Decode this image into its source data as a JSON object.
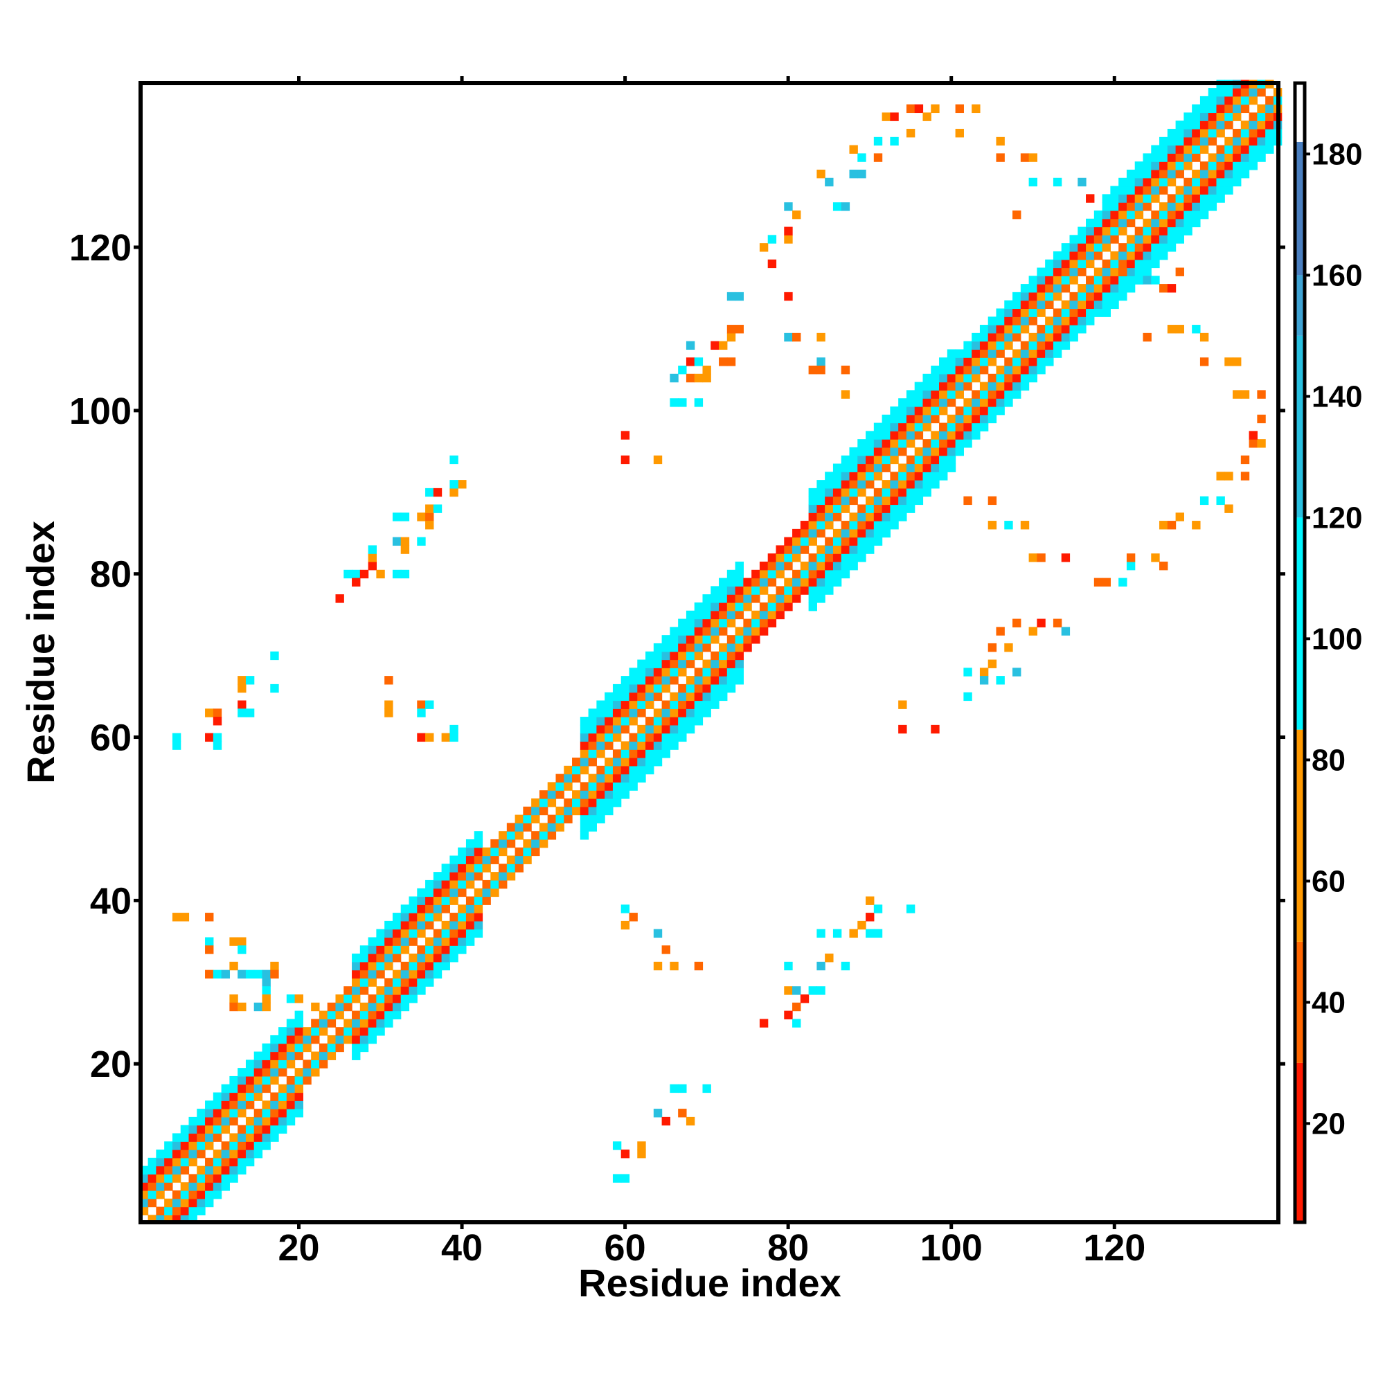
{
  "chart_data": {
    "type": "heatmap",
    "title": "",
    "xlabel": "Residue index",
    "ylabel": "Residue index",
    "xlim": [
      0.6,
      140.1
    ],
    "ylim": [
      0.6,
      140.1
    ],
    "xticks": [
      20,
      40,
      60,
      80,
      100,
      120
    ],
    "yticks": [
      20,
      40,
      60,
      80,
      100,
      120
    ],
    "grid": false,
    "colorbar": {
      "range": [
        3.7,
        191.7
      ],
      "ticks": [
        20,
        40,
        60,
        80,
        100,
        120,
        140,
        160,
        180
      ],
      "bins": [
        {
          "max": 30,
          "color": "#ff1a00"
        },
        {
          "max": 50,
          "color": "#ff6600"
        },
        {
          "max": 85,
          "color": "#ff9900"
        },
        {
          "max": 120,
          "color": "#00f5ff"
        },
        {
          "max": 150,
          "color": "#29c0e0"
        },
        {
          "max": 160,
          "color": "#3fa3d4"
        },
        {
          "max": 182,
          "color": "#4a7fc0"
        },
        {
          "max": 200,
          "color": "#ffffff"
        }
      ],
      "legend_placement": "right"
    },
    "diagonal_band": {
      "n_residues": 140,
      "half_width_segments": [
        {
          "from": 1,
          "to": 20,
          "hw": 6
        },
        {
          "from": 21,
          "to": 26,
          "hw": 3
        },
        {
          "from": 27,
          "to": 42,
          "hw": 6
        },
        {
          "from": 43,
          "to": 54,
          "hw": 3
        },
        {
          "from": 55,
          "to": 74,
          "hw": 7
        },
        {
          "from": 75,
          "to": 82,
          "hw": 4
        },
        {
          "from": 83,
          "to": 100,
          "hw": 7
        },
        {
          "from": 101,
          "to": 118,
          "hw": 6
        },
        {
          "from": 119,
          "to": 140,
          "hw": 7
        }
      ],
      "offset_values_even": [
        185,
        45,
        130,
        60,
        25,
        100,
        95,
        100
      ],
      "offset_values_odd": [
        185,
        60,
        100,
        45,
        25,
        130,
        95,
        100
      ]
    },
    "contacts": [
      [
        60,
        39,
        95
      ],
      [
        61,
        38,
        45
      ],
      [
        60,
        37,
        60
      ],
      [
        64,
        36,
        130
      ],
      [
        65,
        34,
        45
      ],
      [
        64,
        32,
        60
      ],
      [
        66,
        32,
        60
      ],
      [
        69,
        32,
        45
      ],
      [
        59,
        10,
        95
      ],
      [
        60,
        9,
        25
      ],
      [
        62,
        10,
        60
      ],
      [
        62,
        9,
        60
      ],
      [
        59,
        6,
        95
      ],
      [
        60,
        6,
        95
      ],
      [
        66,
        17,
        95
      ],
      [
        67,
        17,
        95
      ],
      [
        70,
        17,
        95
      ],
      [
        64,
        14,
        130
      ],
      [
        65,
        13,
        25
      ],
      [
        67,
        14,
        45
      ],
      [
        68,
        13,
        60
      ],
      [
        77,
        25,
        25
      ],
      [
        80,
        26,
        25
      ],
      [
        81,
        25,
        95
      ],
      [
        81,
        27,
        45
      ],
      [
        82,
        28,
        25
      ],
      [
        80,
        29,
        60
      ],
      [
        81,
        29,
        130
      ],
      [
        83,
        29,
        95
      ],
      [
        84,
        29,
        95
      ],
      [
        80,
        32,
        95
      ],
      [
        84,
        32,
        130
      ],
      [
        85,
        33,
        60
      ],
      [
        87,
        32,
        95
      ],
      [
        84,
        36,
        95
      ],
      [
        86,
        36,
        95
      ],
      [
        88,
        36,
        60
      ],
      [
        89,
        37,
        60
      ],
      [
        90,
        36,
        95
      ],
      [
        91,
        36,
        95
      ],
      [
        90,
        38,
        25
      ],
      [
        90,
        40,
        60
      ],
      [
        91,
        39,
        95
      ],
      [
        95,
        39,
        95
      ],
      [
        94,
        64,
        60
      ],
      [
        94,
        61,
        25
      ],
      [
        98,
        61,
        25
      ],
      [
        102,
        65,
        95
      ],
      [
        102,
        68,
        95
      ],
      [
        104,
        68,
        60
      ],
      [
        105,
        69,
        60
      ],
      [
        105,
        71,
        45
      ],
      [
        106,
        73,
        45
      ],
      [
        107,
        71,
        60
      ],
      [
        108,
        74,
        45
      ],
      [
        106,
        67,
        95
      ],
      [
        108,
        68,
        130
      ],
      [
        110,
        73,
        60
      ],
      [
        111,
        74,
        25
      ],
      [
        113,
        74,
        45
      ],
      [
        114,
        73,
        130
      ],
      [
        104,
        67,
        130
      ],
      [
        102,
        89,
        45
      ],
      [
        105,
        89,
        45
      ],
      [
        105,
        86,
        60
      ],
      [
        107,
        86,
        95
      ],
      [
        109,
        86,
        60
      ],
      [
        110,
        82,
        60
      ],
      [
        111,
        82,
        45
      ],
      [
        114,
        82,
        25
      ],
      [
        118,
        79,
        45
      ],
      [
        119,
        79,
        45
      ],
      [
        122,
        81,
        95
      ],
      [
        122,
        82,
        45
      ],
      [
        121,
        79,
        95
      ],
      [
        125,
        82,
        60
      ],
      [
        126,
        81,
        45
      ],
      [
        126,
        86,
        60
      ],
      [
        127,
        86,
        45
      ],
      [
        128,
        87,
        60
      ],
      [
        130,
        86,
        60
      ],
      [
        131,
        89,
        95
      ],
      [
        133,
        89,
        95
      ],
      [
        134,
        88,
        60
      ],
      [
        133,
        92,
        60
      ],
      [
        134,
        92,
        60
      ],
      [
        136,
        92,
        45
      ],
      [
        136,
        94,
        45
      ],
      [
        137,
        96,
        45
      ],
      [
        138,
        96,
        60
      ],
      [
        137,
        97,
        25
      ],
      [
        124,
        109,
        45
      ],
      [
        127,
        110,
        60
      ],
      [
        128,
        110,
        60
      ],
      [
        130,
        110,
        95
      ],
      [
        131,
        109,
        60
      ],
      [
        131,
        106,
        45
      ],
      [
        134,
        106,
        60
      ],
      [
        135,
        106,
        60
      ],
      [
        135,
        102,
        60
      ],
      [
        136,
        102,
        60
      ],
      [
        138,
        102,
        45
      ],
      [
        138,
        99,
        45
      ],
      [
        121,
        117,
        45
      ],
      [
        123,
        116,
        95
      ],
      [
        124,
        116,
        130
      ],
      [
        125,
        116,
        95
      ],
      [
        126,
        115,
        45
      ],
      [
        127,
        115,
        25
      ],
      [
        128,
        117,
        45
      ],
      [
        5,
        38,
        60
      ],
      [
        6,
        38,
        60
      ],
      [
        9,
        38,
        45
      ],
      [
        9,
        35,
        95
      ],
      [
        9,
        34,
        45
      ],
      [
        12,
        35,
        60
      ],
      [
        13,
        35,
        60
      ],
      [
        13,
        34,
        95
      ],
      [
        9,
        31,
        45
      ],
      [
        10,
        31,
        95
      ],
      [
        11,
        31,
        130
      ],
      [
        12,
        32,
        60
      ],
      [
        13,
        31,
        130
      ],
      [
        14,
        31,
        95
      ],
      [
        15,
        31,
        95
      ],
      [
        16,
        31,
        130
      ],
      [
        17,
        32,
        60
      ],
      [
        17,
        31,
        45
      ],
      [
        16,
        30,
        130
      ],
      [
        16,
        29,
        95
      ],
      [
        12,
        28,
        60
      ],
      [
        12,
        27,
        45
      ],
      [
        13,
        27,
        60
      ],
      [
        15,
        27,
        130
      ],
      [
        16,
        28,
        60
      ],
      [
        16,
        27,
        60
      ],
      [
        19,
        28,
        95
      ],
      [
        20,
        28,
        60
      ],
      [
        22,
        27,
        60
      ],
      [
        5,
        60,
        95
      ],
      [
        5,
        59,
        95
      ],
      [
        9,
        60,
        25
      ],
      [
        10,
        60,
        95
      ],
      [
        10,
        59,
        95
      ],
      [
        9,
        63,
        60
      ],
      [
        10,
        63,
        45
      ],
      [
        10,
        62,
        25
      ],
      [
        13,
        66,
        60
      ],
      [
        13,
        67,
        60
      ],
      [
        14,
        67,
        95
      ],
      [
        13,
        64,
        25
      ],
      [
        13,
        63,
        95
      ],
      [
        14,
        63,
        95
      ],
      [
        17,
        66,
        95
      ],
      [
        17,
        70,
        95
      ],
      [
        31,
        67,
        45
      ],
      [
        31,
        64,
        60
      ],
      [
        31,
        63,
        60
      ],
      [
        35,
        64,
        45
      ],
      [
        36,
        64,
        95
      ],
      [
        35,
        63,
        95
      ],
      [
        35,
        60,
        25
      ],
      [
        36,
        60,
        60
      ],
      [
        38,
        60,
        60
      ],
      [
        39,
        60,
        95
      ],
      [
        39,
        61,
        95
      ],
      [
        25,
        77,
        25
      ],
      [
        26,
        80,
        95
      ],
      [
        27,
        80,
        95
      ],
      [
        27,
        79,
        25
      ],
      [
        28,
        80,
        25
      ],
      [
        29,
        81,
        25
      ],
      [
        30,
        80,
        60
      ],
      [
        29,
        82,
        60
      ],
      [
        29,
        83,
        95
      ],
      [
        32,
        80,
        95
      ],
      [
        33,
        80,
        95
      ],
      [
        32,
        84,
        130
      ],
      [
        33,
        84,
        60
      ],
      [
        33,
        83,
        60
      ],
      [
        35,
        84,
        95
      ],
      [
        32,
        87,
        95
      ],
      [
        33,
        87,
        95
      ],
      [
        35,
        87,
        60
      ],
      [
        36,
        87,
        45
      ],
      [
        36,
        86,
        60
      ],
      [
        36,
        88,
        60
      ],
      [
        37,
        88,
        95
      ],
      [
        36,
        90,
        95
      ],
      [
        37,
        90,
        25
      ],
      [
        39,
        90,
        60
      ],
      [
        40,
        91,
        60
      ],
      [
        39,
        91,
        95
      ],
      [
        39,
        94,
        95
      ],
      [
        60,
        97,
        25
      ],
      [
        60,
        94,
        25
      ],
      [
        64,
        94,
        60
      ],
      [
        66,
        101,
        95
      ],
      [
        67,
        101,
        95
      ],
      [
        69,
        101,
        95
      ],
      [
        66,
        104,
        130
      ],
      [
        67,
        105,
        95
      ],
      [
        68,
        104,
        45
      ],
      [
        69,
        104,
        60
      ],
      [
        70,
        104,
        60
      ],
      [
        70,
        105,
        60
      ],
      [
        68,
        106,
        25
      ],
      [
        69,
        106,
        95
      ],
      [
        68,
        108,
        130
      ],
      [
        72,
        106,
        45
      ],
      [
        73,
        106,
        45
      ],
      [
        71,
        108,
        25
      ],
      [
        72,
        108,
        60
      ],
      [
        73,
        109,
        60
      ],
      [
        73,
        110,
        45
      ],
      [
        74,
        110,
        45
      ],
      [
        73,
        114,
        130
      ],
      [
        74,
        114,
        130
      ],
      [
        78,
        118,
        25
      ],
      [
        77,
        120,
        60
      ],
      [
        78,
        121,
        95
      ],
      [
        80,
        121,
        60
      ],
      [
        80,
        122,
        25
      ],
      [
        80,
        125,
        130
      ],
      [
        81,
        124,
        60
      ],
      [
        84,
        129,
        60
      ],
      [
        85,
        128,
        130
      ],
      [
        86,
        125,
        95
      ],
      [
        87,
        125,
        130
      ],
      [
        88,
        132,
        60
      ],
      [
        89,
        131,
        95
      ],
      [
        88,
        129,
        130
      ],
      [
        89,
        129,
        130
      ],
      [
        80,
        109,
        130
      ],
      [
        81,
        109,
        45
      ],
      [
        84,
        109,
        60
      ],
      [
        84,
        106,
        130
      ],
      [
        83,
        105,
        45
      ],
      [
        84,
        105,
        45
      ],
      [
        87,
        105,
        45
      ],
      [
        87,
        102,
        60
      ],
      [
        80,
        114,
        25
      ],
      [
        91,
        131,
        45
      ],
      [
        91,
        133,
        95
      ],
      [
        92,
        136,
        60
      ],
      [
        93,
        136,
        25
      ],
      [
        95,
        137,
        45
      ],
      [
        96,
        137,
        25
      ],
      [
        97,
        136,
        60
      ],
      [
        98,
        137,
        60
      ],
      [
        101,
        137,
        45
      ],
      [
        103,
        137,
        60
      ],
      [
        101,
        134,
        60
      ],
      [
        106,
        133,
        60
      ],
      [
        106,
        131,
        45
      ],
      [
        95,
        134,
        60
      ],
      [
        93,
        133,
        95
      ],
      [
        109,
        131,
        45
      ],
      [
        110,
        131,
        60
      ],
      [
        110,
        128,
        95
      ],
      [
        108,
        124,
        45
      ],
      [
        113,
        128,
        95
      ],
      [
        116,
        128,
        130
      ],
      [
        117,
        126,
        25
      ]
    ]
  }
}
